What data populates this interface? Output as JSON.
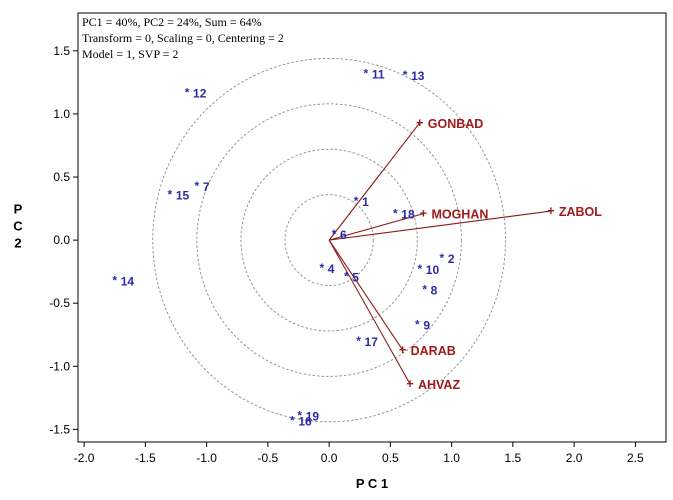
{
  "chart_data": {
    "type": "scatter",
    "title": "",
    "info_lines": [
      "PC1 = 40%, PC2 = 24%, Sum = 64%",
      "Transform = 0, Scaling = 0, Centering = 2",
      "Model = 1, SVP = 2"
    ],
    "xlabel": "P C 1",
    "ylabel": "P C 2",
    "xlim": [
      -2.05,
      2.75
    ],
    "ylim": [
      -1.6,
      1.8
    ],
    "x_ticks": [
      -2.0,
      -1.5,
      -1.0,
      -0.5,
      0.0,
      0.5,
      1.0,
      1.5,
      2.0,
      2.5
    ],
    "x_tick_labels": [
      "-2.0",
      "-1.5",
      "-1.0",
      "-0.5",
      "0.0",
      "0.5",
      "1.0",
      "1.5",
      "2.0",
      "2.5"
    ],
    "y_ticks": [
      1.5,
      1.0,
      0.5,
      0.0,
      -0.5,
      -1.0,
      -1.5
    ],
    "y_tick_labels": [
      "1.5",
      "1.0",
      "0.5",
      "0.0",
      "-0.5",
      "-1.0",
      "-1.5"
    ],
    "circle_radii": [
      0.36,
      0.72,
      1.08,
      1.44
    ],
    "grid": false,
    "colors": {
      "genotype": "#2a2aa8",
      "environment": "#a01a1a",
      "vector": "#8b1a1a",
      "circle": "#8a8a8a"
    },
    "genotypes": [
      {
        "label": "1",
        "x": 0.22,
        "y": 0.31
      },
      {
        "label": "2",
        "x": 0.92,
        "y": -0.14
      },
      {
        "label": "4",
        "x": -0.06,
        "y": -0.22
      },
      {
        "label": "5",
        "x": 0.14,
        "y": -0.29
      },
      {
        "label": "6",
        "x": 0.04,
        "y": 0.05
      },
      {
        "label": "7",
        "x": -1.08,
        "y": 0.43
      },
      {
        "label": "8",
        "x": 0.78,
        "y": -0.39
      },
      {
        "label": "9",
        "x": 0.72,
        "y": -0.67
      },
      {
        "label": "10",
        "x": 0.74,
        "y": -0.23
      },
      {
        "label": "11",
        "x": 0.3,
        "y": 1.32
      },
      {
        "label": "12",
        "x": -1.16,
        "y": 1.17
      },
      {
        "label": "13",
        "x": 0.62,
        "y": 1.31
      },
      {
        "label": "14",
        "x": -1.75,
        "y": -0.32
      },
      {
        "label": "15",
        "x": -1.3,
        "y": 0.36
      },
      {
        "label": "16",
        "x": -0.3,
        "y": -1.43
      },
      {
        "label": "17",
        "x": 0.24,
        "y": -0.8
      },
      {
        "label": "18",
        "x": 0.54,
        "y": 0.21
      },
      {
        "label": "19",
        "x": -0.24,
        "y": -1.39
      }
    ],
    "environments": [
      {
        "label": "GONBAD",
        "x": 0.74,
        "y": 0.93
      },
      {
        "label": "MOGHAN",
        "x": 0.77,
        "y": 0.21
      },
      {
        "label": "ZABOL",
        "x": 1.81,
        "y": 0.23
      },
      {
        "label": "DARAB",
        "x": 0.6,
        "y": -0.87
      },
      {
        "label": "AHVAZ",
        "x": 0.66,
        "y": -1.14
      }
    ]
  }
}
